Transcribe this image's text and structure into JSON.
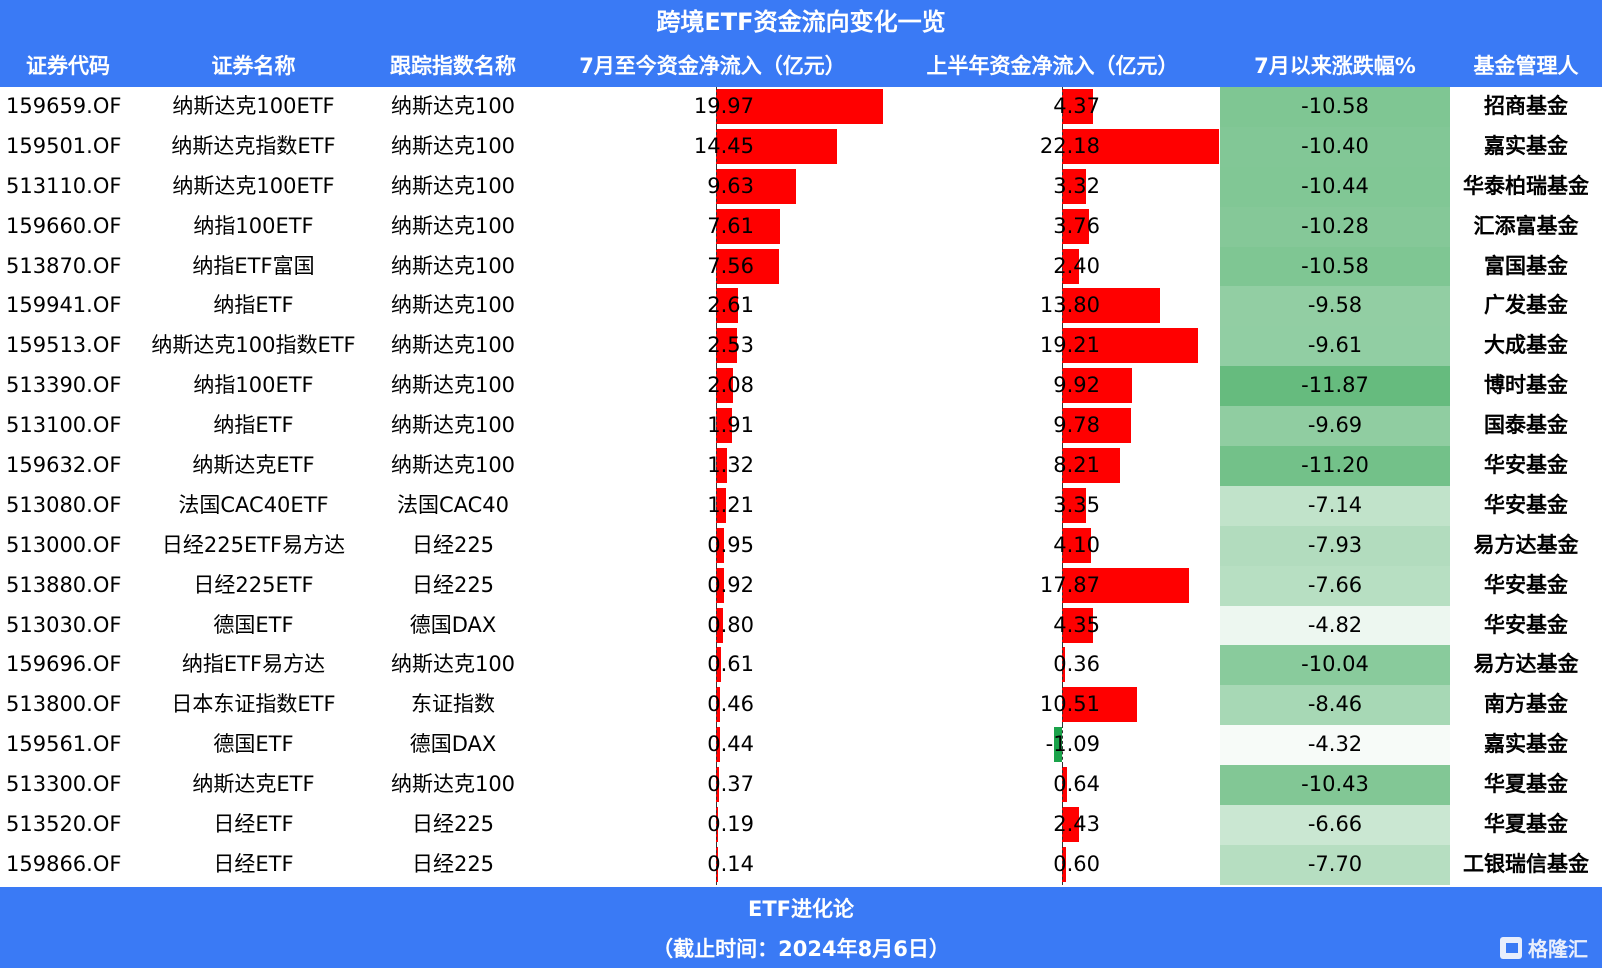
{
  "title": "跨境ETF资金流向变化一览",
  "headers": {
    "code": "证券代码",
    "name": "证券名称",
    "index": "跟踪指数名称",
    "july_flow": "7月至今资金净流入（亿元）",
    "h1_flow": "上半年资金净流入（亿元）",
    "pct": "7月以来涨跌幅%",
    "manager": "基金管理人"
  },
  "colors": {
    "header_bg": "#3a7af5",
    "bar_positive": "#ff0000",
    "bar_negative": "#1aa34a",
    "pct_scale_dark": "#66bb7e",
    "pct_scale_light": "#f7fbf8"
  },
  "rows": [
    {
      "code": "159659.OF",
      "name": "纳斯达克100ETF",
      "index": "纳斯达克100",
      "july": "19.97",
      "h1": "4.37",
      "pct": "-10.58",
      "manager": "招商基金"
    },
    {
      "code": "159501.OF",
      "name": "纳斯达克指数ETF",
      "index": "纳斯达克100",
      "july": "14.45",
      "h1": "22.18",
      "pct": "-10.40",
      "manager": "嘉实基金"
    },
    {
      "code": "513110.OF",
      "name": "纳斯达克100ETF",
      "index": "纳斯达克100",
      "july": "9.63",
      "h1": "3.32",
      "pct": "-10.44",
      "manager": "华泰柏瑞基金"
    },
    {
      "code": "159660.OF",
      "name": "纳指100ETF",
      "index": "纳斯达克100",
      "july": "7.61",
      "h1": "3.76",
      "pct": "-10.28",
      "manager": "汇添富基金"
    },
    {
      "code": "513870.OF",
      "name": "纳指ETF富国",
      "index": "纳斯达克100",
      "july": "7.56",
      "h1": "2.40",
      "pct": "-10.58",
      "manager": "富国基金"
    },
    {
      "code": "159941.OF",
      "name": "纳指ETF",
      "index": "纳斯达克100",
      "july": "2.61",
      "h1": "13.80",
      "pct": "-9.58",
      "manager": "广发基金"
    },
    {
      "code": "159513.OF",
      "name": "纳斯达克100指数ETF",
      "index": "纳斯达克100",
      "july": "2.53",
      "h1": "19.21",
      "pct": "-9.61",
      "manager": "大成基金"
    },
    {
      "code": "513390.OF",
      "name": "纳指100ETF",
      "index": "纳斯达克100",
      "july": "2.08",
      "h1": "9.92",
      "pct": "-11.87",
      "manager": "博时基金"
    },
    {
      "code": "513100.OF",
      "name": "纳指ETF",
      "index": "纳斯达克100",
      "july": "1.91",
      "h1": "9.78",
      "pct": "-9.69",
      "manager": "国泰基金"
    },
    {
      "code": "159632.OF",
      "name": "纳斯达克ETF",
      "index": "纳斯达克100",
      "july": "1.32",
      "h1": "8.21",
      "pct": "-11.20",
      "manager": "华安基金"
    },
    {
      "code": "513080.OF",
      "name": "法国CAC40ETF",
      "index": "法国CAC40",
      "july": "1.21",
      "h1": "3.35",
      "pct": "-7.14",
      "manager": "华安基金"
    },
    {
      "code": "513000.OF",
      "name": "日经225ETF易方达",
      "index": "日经225",
      "july": "0.95",
      "h1": "4.10",
      "pct": "-7.93",
      "manager": "易方达基金"
    },
    {
      "code": "513880.OF",
      "name": "日经225ETF",
      "index": "日经225",
      "july": "0.92",
      "h1": "17.87",
      "pct": "-7.66",
      "manager": "华安基金"
    },
    {
      "code": "513030.OF",
      "name": "德国ETF",
      "index": "德国DAX",
      "july": "0.80",
      "h1": "4.35",
      "pct": "-4.82",
      "manager": "华安基金"
    },
    {
      "code": "159696.OF",
      "name": "纳指ETF易方达",
      "index": "纳斯达克100",
      "july": "0.61",
      "h1": "0.36",
      "pct": "-10.04",
      "manager": "易方达基金"
    },
    {
      "code": "513800.OF",
      "name": "日本东证指数ETF",
      "index": "东证指数",
      "july": "0.46",
      "h1": "10.51",
      "pct": "-8.46",
      "manager": "南方基金"
    },
    {
      "code": "159561.OF",
      "name": "德国ETF",
      "index": "德国DAX",
      "july": "0.44",
      "h1": "-1.09",
      "pct": "-4.32",
      "manager": "嘉实基金"
    },
    {
      "code": "513300.OF",
      "name": "纳斯达克ETF",
      "index": "纳斯达克100",
      "july": "0.37",
      "h1": "0.64",
      "pct": "-10.43",
      "manager": "华夏基金"
    },
    {
      "code": "513520.OF",
      "name": "日经ETF",
      "index": "日经225",
      "july": "0.19",
      "h1": "2.43",
      "pct": "-6.66",
      "manager": "华夏基金"
    },
    {
      "code": "159866.OF",
      "name": "日经ETF",
      "index": "日经225",
      "july": "0.14",
      "h1": "0.60",
      "pct": "-7.70",
      "manager": "工银瑞信基金"
    }
  ],
  "footer": {
    "brand": "ETF进化论",
    "date": "（截止时间：2024年8月6日）",
    "logo_text": "格隆汇"
  },
  "chart_data": {
    "type": "table",
    "title": "跨境ETF资金流向变化一览",
    "columns": [
      "证券代码",
      "证券名称",
      "跟踪指数名称",
      "7月至今资金净流入（亿元）",
      "上半年资金净流入（亿元）",
      "7月以来涨跌幅%",
      "基金管理人"
    ],
    "categories": [
      "159659.OF",
      "159501.OF",
      "513110.OF",
      "159660.OF",
      "513870.OF",
      "159941.OF",
      "159513.OF",
      "513390.OF",
      "513100.OF",
      "159632.OF",
      "513080.OF",
      "513000.OF",
      "513880.OF",
      "513030.OF",
      "159696.OF",
      "513800.OF",
      "159561.OF",
      "513300.OF",
      "513520.OF",
      "159866.OF"
    ],
    "series": [
      {
        "name": "7月至今资金净流入（亿元）",
        "type": "bar",
        "values": [
          19.97,
          14.45,
          9.63,
          7.61,
          7.56,
          2.61,
          2.53,
          2.08,
          1.91,
          1.32,
          1.21,
          0.95,
          0.92,
          0.8,
          0.61,
          0.46,
          0.44,
          0.37,
          0.19,
          0.14
        ]
      },
      {
        "name": "上半年资金净流入（亿元）",
        "type": "bar",
        "values": [
          4.37,
          22.18,
          3.32,
          3.76,
          2.4,
          13.8,
          19.21,
          9.92,
          9.78,
          8.21,
          3.35,
          4.1,
          17.87,
          4.35,
          0.36,
          10.51,
          -1.09,
          0.64,
          2.43,
          0.6
        ]
      },
      {
        "name": "7月以来涨跌幅%",
        "type": "heatmap",
        "values": [
          -10.58,
          -10.4,
          -10.44,
          -10.28,
          -10.58,
          -9.58,
          -9.61,
          -11.87,
          -9.69,
          -11.2,
          -7.14,
          -7.93,
          -7.66,
          -4.82,
          -10.04,
          -8.46,
          -4.32,
          -10.43,
          -6.66,
          -7.7
        ]
      }
    ],
    "footnote": "（截止时间：2024年8月6日）",
    "source": "ETF进化论"
  }
}
